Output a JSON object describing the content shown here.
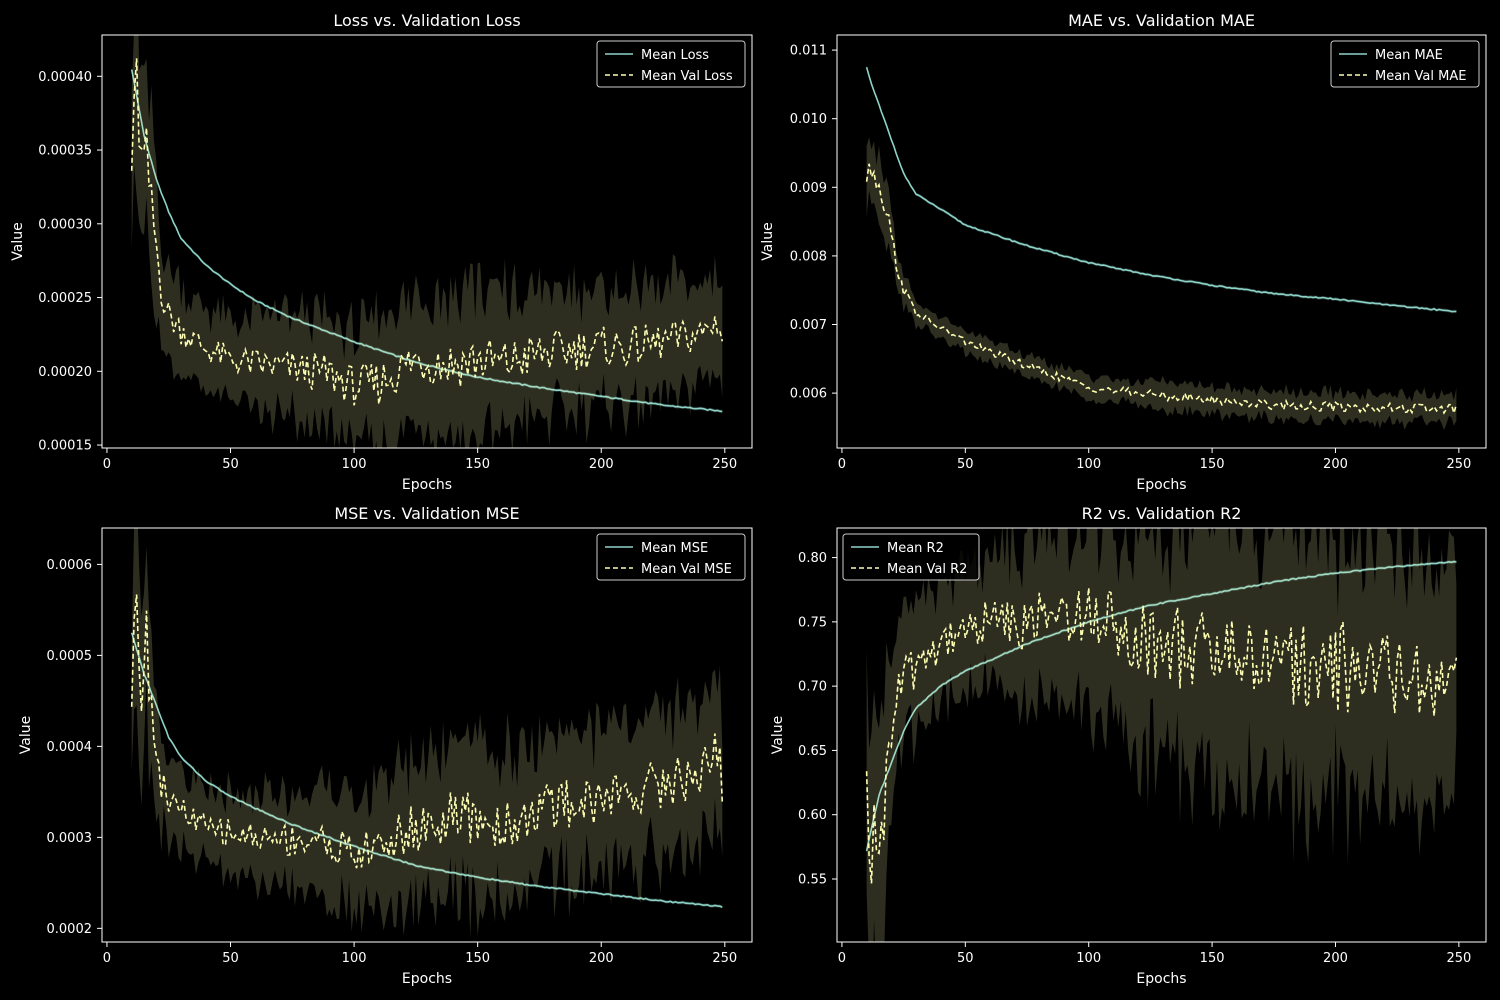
{
  "chart_data": [
    {
      "type": "line",
      "title": "Loss vs. Validation Loss",
      "xlabel": "Epochs",
      "ylabel": "Value",
      "xlim": [
        -2,
        261
      ],
      "ylim": [
        0.000148,
        0.000428
      ],
      "xticks": [
        0,
        50,
        100,
        150,
        200,
        250
      ],
      "yticks": [
        0.00015,
        0.0002,
        0.00025,
        0.0003,
        0.00035,
        0.0004
      ],
      "ytick_labels": [
        "0.00015",
        "0.00020",
        "0.00025",
        "0.00030",
        "0.00035",
        "0.00040"
      ],
      "legend": "top-right",
      "series": [
        {
          "name": "Mean Loss",
          "style": "solid",
          "color": "#8dd3c7",
          "x": [
            10,
            15,
            20,
            25,
            30,
            40,
            50,
            60,
            75,
            100,
            125,
            150,
            175,
            200,
            225,
            249
          ],
          "values": [
            0.000405,
            0.00036,
            0.00033,
            0.000308,
            0.00029,
            0.000272,
            0.000259,
            0.000248,
            0.000236,
            0.00022,
            0.000206,
            0.000196,
            0.000189,
            0.000183,
            0.000177,
            0.000173
          ]
        },
        {
          "name": "Mean Val Loss",
          "style": "dashed",
          "color": "#ffffb3",
          "x": [
            10,
            12,
            14,
            16,
            18,
            20,
            22,
            25,
            30,
            40,
            50,
            60,
            75,
            90,
            100,
            110,
            125,
            140,
            150,
            160,
            175,
            190,
            200,
            210,
            225,
            240,
            248,
            249
          ],
          "values": [
            0.00034,
            0.000395,
            0.00034,
            0.000345,
            0.00031,
            0.000285,
            0.000255,
            0.000238,
            0.000228,
            0.000215,
            0.000208,
            0.000205,
            0.000202,
            0.000198,
            0.00019,
            0.000192,
            0.000208,
            0.000205,
            0.000208,
            0.000205,
            0.000212,
            0.000215,
            0.000217,
            0.000216,
            0.00022,
            0.000225,
            0.000235,
            0.00022
          ],
          "band": [
            3e-05,
            5e-05,
            4e-05,
            4e-05,
            3.5e-05,
            3e-05,
            2e-05,
            2e-05,
            1.8e-05,
            1.6e-05,
            1.8e-05,
            2e-05,
            2.2e-05,
            2.5e-05,
            2.5e-05,
            2.8e-05,
            3e-05,
            3.2e-05,
            3.2e-05,
            3e-05,
            2.8e-05,
            2.6e-05,
            2.5e-05,
            2.5e-05,
            2.4e-05,
            2.2e-05,
            2.2e-05,
            2e-05
          ]
        }
      ]
    },
    {
      "type": "line",
      "title": "MAE vs. Validation MAE",
      "xlabel": "Epochs",
      "ylabel": "Value",
      "xlim": [
        -2,
        261
      ],
      "ylim": [
        0.0052,
        0.01122
      ],
      "xticks": [
        0,
        50,
        100,
        150,
        200,
        250
      ],
      "yticks": [
        0.006,
        0.007,
        0.008,
        0.009,
        0.01,
        0.011
      ],
      "ytick_labels": [
        "0.006",
        "0.007",
        "0.008",
        "0.009",
        "0.010",
        "0.011"
      ],
      "legend": "top-right",
      "series": [
        {
          "name": "Mean MAE",
          "style": "solid",
          "color": "#8dd3c7",
          "x": [
            10,
            12,
            15,
            20,
            25,
            30,
            40,
            50,
            60,
            75,
            100,
            125,
            150,
            175,
            200,
            225,
            249
          ],
          "values": [
            0.01075,
            0.0105,
            0.0102,
            0.0097,
            0.0092,
            0.0089,
            0.00868,
            0.00845,
            0.00833,
            0.00815,
            0.0079,
            0.00772,
            0.00757,
            0.00745,
            0.00737,
            0.00727,
            0.00719
          ]
        },
        {
          "name": "Mean Val MAE",
          "style": "dashed",
          "color": "#ffffb3",
          "x": [
            10,
            12,
            15,
            18,
            20,
            22,
            25,
            30,
            35,
            40,
            50,
            60,
            75,
            100,
            125,
            150,
            175,
            200,
            225,
            249
          ],
          "values": [
            0.0092,
            0.0093,
            0.009,
            0.0087,
            0.0083,
            0.0079,
            0.0075,
            0.00718,
            0.00705,
            0.00695,
            0.00675,
            0.0066,
            0.0064,
            0.00608,
            0.00598,
            0.0059,
            0.00583,
            0.0058,
            0.00578,
            0.00577
          ],
          "band": [
            0.0003,
            0.0003,
            0.0003,
            0.00028,
            0.00025,
            0.0002,
            0.00015,
            0.00012,
            0.0001,
            0.0001,
            0.0001,
            0.0001,
            0.0001,
            0.0001,
            0.00012,
            0.00013,
            0.00013,
            0.00013,
            0.00013,
            0.00013
          ]
        }
      ]
    },
    {
      "type": "line",
      "title": "MSE vs. Validation MSE",
      "xlabel": "Epochs",
      "ylabel": "Value",
      "xlim": [
        -2,
        261
      ],
      "ylim": [
        0.000185,
        0.00064
      ],
      "xticks": [
        0,
        50,
        100,
        150,
        200,
        250
      ],
      "yticks": [
        0.0002,
        0.0003,
        0.0004,
        0.0005,
        0.0006
      ],
      "ytick_labels": [
        "0.0002",
        "0.0003",
        "0.0004",
        "0.0005",
        "0.0006"
      ],
      "legend": "top-right",
      "series": [
        {
          "name": "Mean MSE",
          "style": "solid",
          "color": "#8dd3c7",
          "x": [
            10,
            15,
            20,
            25,
            30,
            40,
            50,
            60,
            75,
            100,
            125,
            150,
            175,
            200,
            225,
            249
          ],
          "values": [
            0.000525,
            0.00048,
            0.000445,
            0.00041,
            0.000388,
            0.000362,
            0.000345,
            0.000332,
            0.000314,
            0.00029,
            0.000269,
            0.000256,
            0.000246,
            0.000238,
            0.00023,
            0.000224
          ]
        },
        {
          "name": "Mean Val MSE",
          "style": "dashed",
          "color": "#ffffb3",
          "x": [
            10,
            12,
            14,
            16,
            18,
            20,
            22,
            25,
            30,
            40,
            50,
            60,
            75,
            90,
            100,
            110,
            125,
            140,
            150,
            160,
            175,
            190,
            200,
            210,
            225,
            240,
            248,
            249
          ],
          "values": [
            0.000465,
            0.00057,
            0.00047,
            0.00052,
            0.00044,
            0.0004,
            0.00036,
            0.00034,
            0.00033,
            0.00031,
            0.000305,
            0.0003,
            0.000298,
            0.000295,
            0.00028,
            0.00029,
            0.00031,
            0.00032,
            0.00032,
            0.00031,
            0.00033,
            0.00034,
            0.00034,
            0.00035,
            0.00036,
            0.00037,
            0.0004,
            0.000358
          ],
          "band": [
            5e-05,
            7e-05,
            6e-05,
            6e-05,
            5e-05,
            4e-05,
            3e-05,
            3e-05,
            2.8e-05,
            2.6e-05,
            2.8e-05,
            3e-05,
            3.5e-05,
            4e-05,
            4e-05,
            4.5e-05,
            5e-05,
            5.5e-05,
            5.5e-05,
            5e-05,
            5e-05,
            5e-05,
            5e-05,
            5e-05,
            5e-05,
            4.8e-05,
            5e-05,
            4.5e-05
          ]
        }
      ]
    },
    {
      "type": "line",
      "title": "R2 vs. Validation R2",
      "xlabel": "Epochs",
      "ylabel": "Value",
      "xlim": [
        -2,
        261
      ],
      "ylim": [
        0.501,
        0.823
      ],
      "xticks": [
        0,
        50,
        100,
        150,
        200,
        250
      ],
      "yticks": [
        0.55,
        0.6,
        0.65,
        0.7,
        0.75,
        0.8
      ],
      "ytick_labels": [
        "0.55",
        "0.60",
        "0.65",
        "0.70",
        "0.75",
        "0.80"
      ],
      "legend": "top-left",
      "series": [
        {
          "name": "Mean R2",
          "style": "solid",
          "color": "#8dd3c7",
          "x": [
            10,
            15,
            20,
            25,
            30,
            40,
            50,
            60,
            75,
            100,
            125,
            150,
            175,
            200,
            225,
            249
          ],
          "values": [
            0.572,
            0.615,
            0.64,
            0.665,
            0.683,
            0.7,
            0.712,
            0.72,
            0.733,
            0.75,
            0.763,
            0.772,
            0.781,
            0.788,
            0.793,
            0.797
          ]
        },
        {
          "name": "Mean Val R2",
          "style": "dashed",
          "color": "#ffffb3",
          "x": [
            10,
            12,
            14,
            16,
            18,
            20,
            22,
            25,
            30,
            40,
            50,
            60,
            75,
            90,
            100,
            110,
            125,
            140,
            150,
            160,
            175,
            190,
            200,
            210,
            225,
            240,
            248,
            249
          ],
          "values": [
            0.635,
            0.56,
            0.6,
            0.58,
            0.63,
            0.665,
            0.69,
            0.705,
            0.715,
            0.735,
            0.745,
            0.75,
            0.75,
            0.755,
            0.76,
            0.75,
            0.735,
            0.728,
            0.728,
            0.725,
            0.72,
            0.718,
            0.715,
            0.712,
            0.71,
            0.705,
            0.71,
            0.698
          ],
          "band": [
            0.05,
            0.07,
            0.06,
            0.06,
            0.05,
            0.04,
            0.035,
            0.03,
            0.03,
            0.03,
            0.03,
            0.035,
            0.04,
            0.045,
            0.045,
            0.05,
            0.055,
            0.06,
            0.062,
            0.062,
            0.065,
            0.065,
            0.065,
            0.065,
            0.063,
            0.06,
            0.055,
            0.05
          ]
        }
      ]
    }
  ]
}
